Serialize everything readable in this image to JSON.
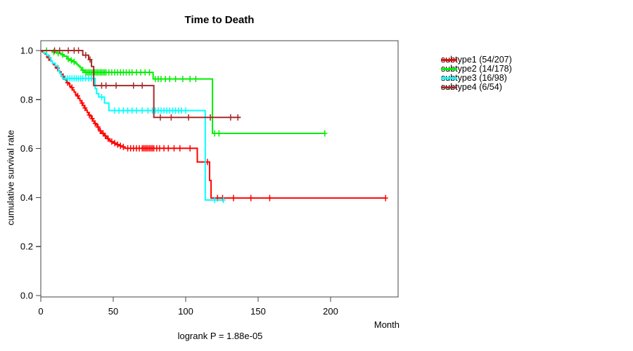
{
  "chart_data": {
    "type": "line",
    "variant": "kaplan-meier-step",
    "title": "Time to Death",
    "xlabel": "Month",
    "ylabel": "cumulative survival rate",
    "annotation": "logrank P = 1.88e-05",
    "xlim": [
      0,
      246
    ],
    "ylim": [
      0.0,
      1.0
    ],
    "x_ticks": [
      0,
      50,
      100,
      150,
      200
    ],
    "y_ticks": [
      0.0,
      0.2,
      0.4,
      0.6,
      0.8,
      1.0
    ],
    "grid": false,
    "legend_position": "right-outside",
    "series": [
      {
        "name": "subtype1",
        "label": "subtype1 (54/207)",
        "color": "#ff0000",
        "end": 238,
        "steps": [
          [
            0,
            1
          ],
          [
            1,
            0.995
          ],
          [
            2,
            0.99
          ],
          [
            3,
            0.986
          ],
          [
            4,
            0.976
          ],
          [
            5,
            0.971
          ],
          [
            6,
            0.961
          ],
          [
            7,
            0.957
          ],
          [
            8,
            0.947
          ],
          [
            9,
            0.942
          ],
          [
            10,
            0.932
          ],
          [
            11,
            0.928
          ],
          [
            12,
            0.918
          ],
          [
            13,
            0.913
          ],
          [
            14,
            0.903
          ],
          [
            15,
            0.894
          ],
          [
            16,
            0.884
          ],
          [
            17,
            0.879
          ],
          [
            18,
            0.869
          ],
          [
            19,
            0.864
          ],
          [
            20,
            0.854
          ],
          [
            21,
            0.849
          ],
          [
            22,
            0.839
          ],
          [
            23,
            0.83
          ],
          [
            24,
            0.82
          ],
          [
            25,
            0.815
          ],
          [
            26,
            0.805
          ],
          [
            27,
            0.795
          ],
          [
            28,
            0.786
          ],
          [
            29,
            0.776
          ],
          [
            30,
            0.766
          ],
          [
            31,
            0.757
          ],
          [
            32,
            0.747
          ],
          [
            33,
            0.737
          ],
          [
            34,
            0.732
          ],
          [
            35,
            0.722
          ],
          [
            36,
            0.712
          ],
          [
            37,
            0.703
          ],
          [
            38,
            0.697
          ],
          [
            39,
            0.688
          ],
          [
            40,
            0.678
          ],
          [
            41,
            0.672
          ],
          [
            42,
            0.662
          ],
          [
            44,
            0.652
          ],
          [
            45,
            0.646
          ],
          [
            46,
            0.64
          ],
          [
            47,
            0.634
          ],
          [
            48,
            0.628
          ],
          [
            50,
            0.622
          ],
          [
            52,
            0.616
          ],
          [
            54,
            0.611
          ],
          [
            56,
            0.607
          ],
          [
            58,
            0.601
          ],
          [
            108,
            0.545
          ],
          [
            116.5,
            0.47
          ],
          [
            117.5,
            0.398
          ]
        ],
        "censor_ticks": [
          5.5,
          11.5,
          15.5,
          18.5,
          21.5,
          25.5,
          28.5,
          30.5,
          33.5,
          35.5,
          37.5,
          39.5,
          41,
          43,
          44.5,
          46.5,
          49,
          51,
          53,
          55,
          57,
          60,
          62,
          64,
          66,
          68,
          70,
          71,
          72,
          73,
          74,
          75,
          76,
          77,
          78,
          80,
          82,
          85,
          88,
          92,
          96,
          103,
          115,
          122,
          125.5,
          133,
          145,
          158,
          238
        ]
      },
      {
        "name": "subtype2",
        "label": "subtype2 (14/178)",
        "color": "#00ee00",
        "end": 196,
        "steps": [
          [
            0,
            1
          ],
          [
            8,
            0.994
          ],
          [
            11,
            0.989
          ],
          [
            14,
            0.983
          ],
          [
            16,
            0.977
          ],
          [
            18,
            0.966
          ],
          [
            20,
            0.96
          ],
          [
            22,
            0.954
          ],
          [
            24,
            0.948
          ],
          [
            25,
            0.942
          ],
          [
            26,
            0.937
          ],
          [
            27,
            0.931
          ],
          [
            28,
            0.92
          ],
          [
            30,
            0.911
          ],
          [
            77.5,
            0.884
          ],
          [
            118.5,
            0.662
          ]
        ],
        "censor_ticks": [
          4,
          9,
          12,
          15,
          19,
          21,
          23,
          29,
          31,
          32,
          33,
          34,
          35,
          36,
          37,
          38,
          39,
          40,
          41,
          42,
          43,
          44,
          45,
          47,
          49,
          51,
          53,
          55,
          57,
          59,
          61,
          63,
          66,
          69,
          72,
          75,
          79,
          81,
          83,
          86,
          89,
          93,
          98,
          103,
          107,
          120,
          123,
          196
        ]
      },
      {
        "name": "subtype3",
        "label": "subtype3 (16/98)",
        "color": "#00ffff",
        "end": 126,
        "steps": [
          [
            0,
            1
          ],
          [
            2,
            0.99
          ],
          [
            4,
            0.979
          ],
          [
            6,
            0.969
          ],
          [
            7,
            0.958
          ],
          [
            8,
            0.948
          ],
          [
            10,
            0.937
          ],
          [
            12,
            0.917
          ],
          [
            13,
            0.907
          ],
          [
            14,
            0.896
          ],
          [
            15,
            0.886
          ],
          [
            37.5,
            0.845
          ],
          [
            38.5,
            0.824
          ],
          [
            40,
            0.81
          ],
          [
            44,
            0.786
          ],
          [
            47,
            0.755
          ],
          [
            113.5,
            0.39
          ]
        ],
        "censor_ticks": [
          17,
          18.5,
          20,
          21.5,
          23,
          24.5,
          26,
          27.5,
          29,
          31,
          33,
          35,
          42,
          51,
          54,
          57,
          60,
          63,
          66,
          70,
          74,
          77,
          79,
          81,
          83,
          85,
          87,
          89,
          91,
          93,
          95,
          97,
          100,
          120,
          126
        ]
      },
      {
        "name": "subtype4",
        "label": "subtype4 (6/54)",
        "color": "#a52a2a",
        "end": 138,
        "steps": [
          [
            0,
            1
          ],
          [
            29,
            0.981
          ],
          [
            33,
            0.963
          ],
          [
            35,
            0.935
          ],
          [
            36.5,
            0.857
          ],
          [
            78,
            0.727
          ]
        ],
        "censor_ticks": [
          9.5,
          13,
          19,
          23,
          26,
          31,
          34,
          42,
          45,
          52,
          64,
          70,
          82.5,
          90,
          102,
          117,
          131,
          136
        ]
      }
    ]
  }
}
